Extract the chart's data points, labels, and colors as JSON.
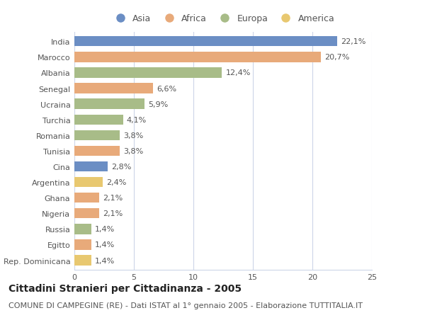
{
  "countries": [
    "India",
    "Marocco",
    "Albania",
    "Senegal",
    "Ucraina",
    "Turchia",
    "Romania",
    "Tunisia",
    "Cina",
    "Argentina",
    "Ghana",
    "Nigeria",
    "Russia",
    "Egitto",
    "Rep. Dominicana"
  ],
  "values": [
    22.1,
    20.7,
    12.4,
    6.6,
    5.9,
    4.1,
    3.8,
    3.8,
    2.8,
    2.4,
    2.1,
    2.1,
    1.4,
    1.4,
    1.4
  ],
  "labels": [
    "22,1%",
    "20,7%",
    "12,4%",
    "6,6%",
    "5,9%",
    "4,1%",
    "3,8%",
    "3,8%",
    "2,8%",
    "2,4%",
    "2,1%",
    "2,1%",
    "1,4%",
    "1,4%",
    "1,4%"
  ],
  "continents": [
    "Asia",
    "Africa",
    "Europa",
    "Africa",
    "Europa",
    "Europa",
    "Europa",
    "Africa",
    "Asia",
    "America",
    "Africa",
    "Africa",
    "Europa",
    "Africa",
    "America"
  ],
  "continent_colors": {
    "Asia": "#6b8ec4",
    "Africa": "#e8aa7a",
    "Europa": "#a8bc88",
    "America": "#e8c870"
  },
  "legend_order": [
    "Asia",
    "Africa",
    "Europa",
    "America"
  ],
  "title": "Cittadini Stranieri per Cittadinanza - 2005",
  "subtitle": "COMUNE DI CAMPEGINE (RE) - Dati ISTAT al 1° gennaio 2005 - Elaborazione TUTTITALIA.IT",
  "xlim": [
    0,
    25
  ],
  "xticks": [
    0,
    5,
    10,
    15,
    20,
    25
  ],
  "bg_color": "#ffffff",
  "grid_color": "#ccd5e8",
  "bar_height": 0.65,
  "title_fontsize": 10,
  "subtitle_fontsize": 8,
  "label_fontsize": 8,
  "tick_fontsize": 8,
  "legend_fontsize": 9
}
